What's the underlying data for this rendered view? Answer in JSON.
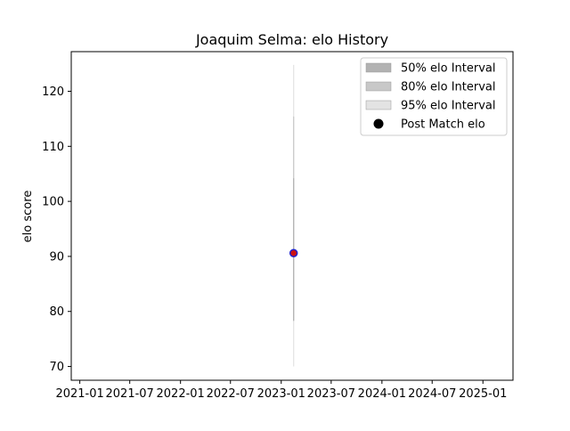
{
  "chart_data": {
    "type": "line",
    "title": "Joaquim Selma: elo History",
    "xlabel": "",
    "ylabel": "elo score",
    "x_axis_type": "date",
    "x_ticks": [
      "2021-01",
      "2021-07",
      "2022-01",
      "2022-07",
      "2023-01",
      "2023-07",
      "2024-01",
      "2024-07",
      "2025-01"
    ],
    "y_ticks": [
      70,
      80,
      90,
      100,
      110,
      120
    ],
    "xlim": [
      "2020-12-01",
      "2025-04-20"
    ],
    "ylim": [
      67.5,
      127.2
    ],
    "grid": false,
    "legend_position": "top-right",
    "legend": [
      {
        "label": "50% elo Interval",
        "type": "band",
        "color": "#b2b2b2"
      },
      {
        "label": "80% elo Interval",
        "type": "band",
        "color": "#c8c8c8"
      },
      {
        "label": "95% elo Interval",
        "type": "band",
        "color": "#e3e3e3"
      },
      {
        "label": "Post Match elo",
        "type": "marker",
        "color": "#000000"
      }
    ],
    "series": [
      {
        "name": "Post Match elo",
        "points": [
          {
            "x": "2023-02-15",
            "y": 90.6,
            "interval_50": [
              78.3,
              104.2
            ],
            "interval_80": [
              78.3,
              115.4
            ],
            "interval_95": [
              70.0,
              124.8
            ]
          }
        ],
        "marker_face": "#cc1111",
        "marker_edge": "#2222cc"
      }
    ]
  }
}
